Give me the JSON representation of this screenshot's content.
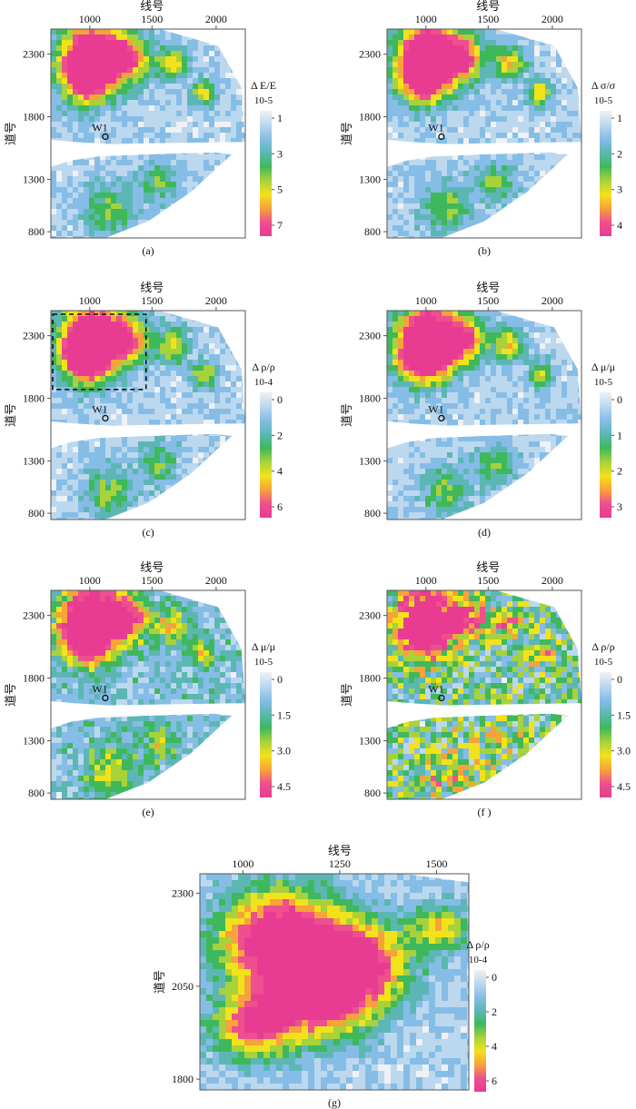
{
  "figure": {
    "panels": [
      {
        "id": "a",
        "caption": "(a)",
        "xlabel": "线号",
        "ylabel": "道号",
        "xticks": [
          "1000",
          "1500",
          "2000"
        ],
        "yticks": [
          "2300",
          "1800",
          "1300",
          "800"
        ],
        "well": "W1",
        "cb_title": "Δ E/E",
        "cb_exp": "10-5",
        "cb_ticks": [
          "1",
          "3",
          "5",
          "7"
        ],
        "style": "smooth",
        "dashbox": false
      },
      {
        "id": "b",
        "caption": "(b)",
        "xlabel": "线号",
        "ylabel": "道号",
        "xticks": [
          "1000",
          "1500",
          "2000"
        ],
        "yticks": [
          "2300",
          "1800",
          "1300",
          "800"
        ],
        "well": "W1",
        "cb_title": "Δ σ/σ",
        "cb_exp": "10-5",
        "cb_ticks": [
          "1",
          "2",
          "3",
          "4"
        ],
        "style": "smooth",
        "dashbox": false
      },
      {
        "id": "c",
        "caption": "(c)",
        "xlabel": "线号",
        "ylabel": "道号",
        "xticks": [
          "1000",
          "1500",
          "2000"
        ],
        "yticks": [
          "2300",
          "1800",
          "1300",
          "800"
        ],
        "well": "W1",
        "cb_title": "Δ ρ/ρ",
        "cb_exp": "10-4",
        "cb_ticks": [
          "0",
          "2",
          "4",
          "6"
        ],
        "style": "smooth",
        "dashbox": true
      },
      {
        "id": "d",
        "caption": "(d)",
        "xlabel": "线号",
        "ylabel": "道号",
        "xticks": [
          "1000",
          "1500",
          "2000"
        ],
        "yticks": [
          "2300",
          "1800",
          "1300",
          "800"
        ],
        "well": "W1",
        "cb_title": "Δ μ/μ",
        "cb_exp": "10-5",
        "cb_ticks": [
          "0",
          "1",
          "2",
          "3"
        ],
        "style": "smooth",
        "dashbox": false
      },
      {
        "id": "e",
        "caption": "(e)",
        "xlabel": "线号",
        "ylabel": "道号",
        "xticks": [
          "1000",
          "1500",
          "2000"
        ],
        "yticks": [
          "2300",
          "1800",
          "1300",
          "800"
        ],
        "well": "W1",
        "cb_title": "Δ μ/μ",
        "cb_exp": "10-5",
        "cb_ticks": [
          "0",
          "1.5",
          "3.0",
          "4.5"
        ],
        "style": "mid",
        "dashbox": false
      },
      {
        "id": "f",
        "caption": "(f )",
        "xlabel": "线号",
        "ylabel": "道号",
        "xticks": [
          "1000",
          "1500",
          "2000"
        ],
        "yticks": [
          "2300",
          "1800",
          "1300",
          "800"
        ],
        "well": "W1",
        "cb_title": "Δ ρ/ρ",
        "cb_exp": "10-5",
        "cb_ticks": [
          "0",
          "1.5",
          "3.0",
          "4.5"
        ],
        "style": "noisy",
        "dashbox": false
      },
      {
        "id": "g",
        "caption": "(g)",
        "xlabel": "线号",
        "ylabel": "道号",
        "xticks": [
          "1000",
          "1250",
          "1500"
        ],
        "yticks": [
          "2300",
          "2050",
          "1800"
        ],
        "well": "",
        "cb_title": "Δ ρ/ρ",
        "cb_exp": "10-4",
        "cb_ticks": [
          "0",
          "2",
          "4",
          "6"
        ],
        "style": "zoom",
        "dashbox": false
      }
    ],
    "colormap": [
      "#eef1f5",
      "#bcd8ee",
      "#86bde6",
      "#5cb7b4",
      "#3fb85b",
      "#a8d23c",
      "#f2e21c",
      "#f7a23a",
      "#ee4f8e",
      "#e83c92"
    ]
  }
}
